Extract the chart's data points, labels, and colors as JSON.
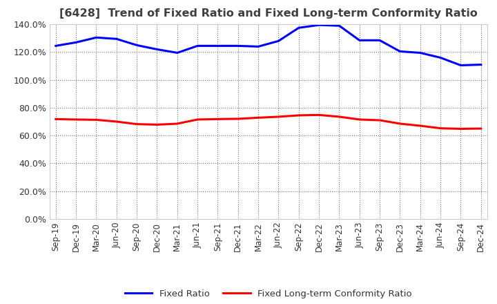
{
  "title": "[6428]  Trend of Fixed Ratio and Fixed Long-term Conformity Ratio",
  "x_labels": [
    "Sep-19",
    "Dec-19",
    "Mar-20",
    "Jun-20",
    "Sep-20",
    "Dec-20",
    "Mar-21",
    "Jun-21",
    "Sep-21",
    "Dec-21",
    "Mar-22",
    "Jun-22",
    "Sep-22",
    "Dec-22",
    "Mar-23",
    "Jun-23",
    "Sep-23",
    "Dec-23",
    "Mar-24",
    "Jun-24",
    "Sep-24",
    "Dec-24"
  ],
  "fixed_ratio": [
    1.245,
    1.27,
    1.305,
    1.295,
    1.25,
    1.22,
    1.195,
    1.245,
    1.245,
    1.245,
    1.24,
    1.28,
    1.375,
    1.395,
    1.39,
    1.285,
    1.285,
    1.205,
    1.195,
    1.16,
    1.105,
    1.11
  ],
  "fixed_lt_ratio": [
    0.718,
    0.715,
    0.713,
    0.7,
    0.682,
    0.678,
    0.685,
    0.715,
    0.718,
    0.72,
    0.728,
    0.735,
    0.745,
    0.748,
    0.735,
    0.715,
    0.71,
    0.685,
    0.67,
    0.652,
    0.648,
    0.65
  ],
  "fixed_ratio_color": "#0000FF",
  "fixed_lt_ratio_color": "#FF0000",
  "ylim": [
    0.0,
    1.4
  ],
  "yticks": [
    0.0,
    0.2,
    0.4,
    0.6,
    0.8,
    1.0,
    1.2,
    1.4
  ],
  "legend_fixed": "Fixed Ratio",
  "legend_lt": "Fixed Long-term Conformity Ratio",
  "bg_color": "#ffffff",
  "plot_bg_color": "#ffffff",
  "grid_color": "#555555",
  "title_color": "#404040",
  "title_fontsize": 11.5
}
